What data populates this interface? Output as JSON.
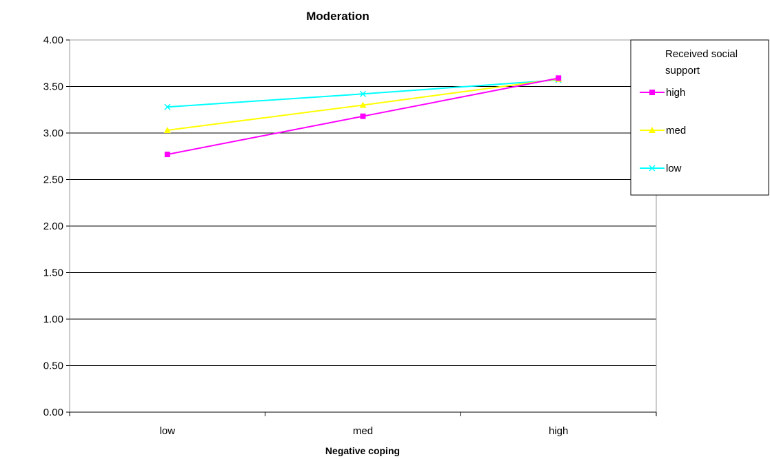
{
  "chart_data": {
    "type": "line",
    "title": "Moderation",
    "xlabel": "Negative coping",
    "ylabel": "",
    "categories": [
      "low",
      "med",
      "high"
    ],
    "ylim": [
      0,
      4
    ],
    "ytick_labels": [
      "0.00",
      "0.50",
      "1.00",
      "1.50",
      "2.00",
      "2.50",
      "3.00",
      "3.50",
      "4.00"
    ],
    "grid": true,
    "legend": {
      "title": "Received social support",
      "placement": "right"
    },
    "series": [
      {
        "name": "high",
        "values": [
          2.77,
          3.18,
          3.59
        ],
        "color": "#FF00FF",
        "marker": "square"
      },
      {
        "name": "med",
        "values": [
          3.03,
          3.3,
          3.58
        ],
        "color": "#FFFF00",
        "marker": "triangle"
      },
      {
        "name": "low",
        "values": [
          3.28,
          3.42,
          3.57
        ],
        "color": "#00FFFF",
        "marker": "x"
      }
    ]
  }
}
